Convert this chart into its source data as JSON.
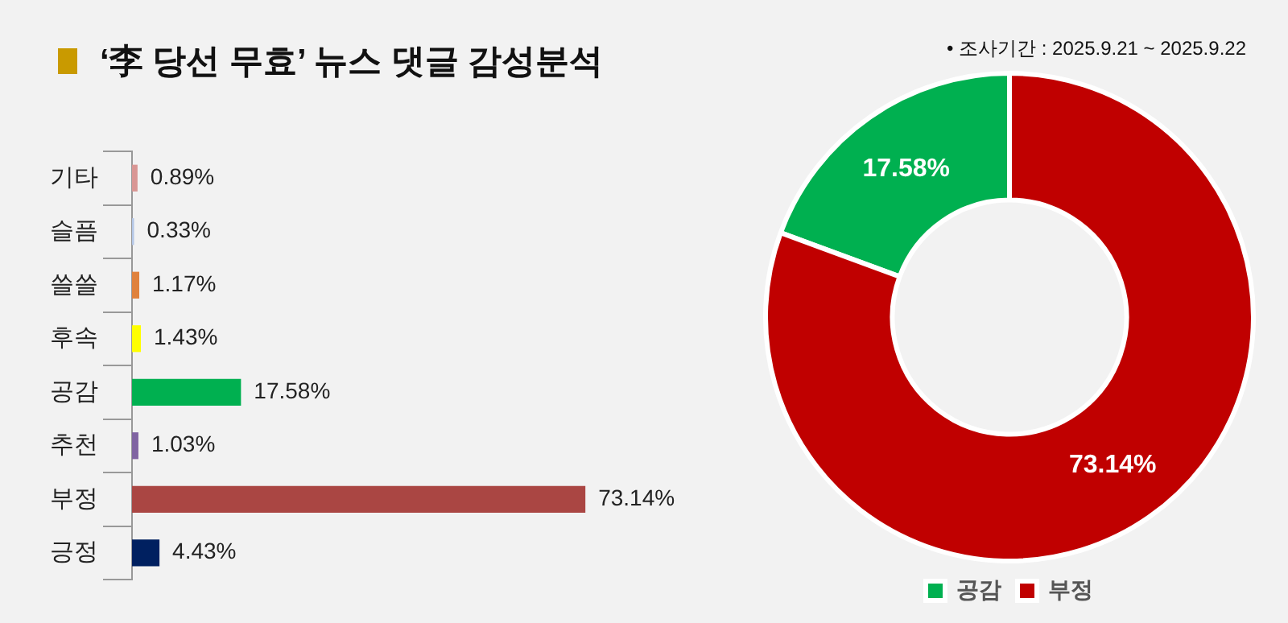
{
  "chart_data": [
    {
      "type": "bar",
      "orientation": "horizontal",
      "title": "‘李 당선 무효’ 뉴스 댓글 감성분석",
      "categories": [
        "기타",
        "슬픔",
        "쓸쓸",
        "후속",
        "공감",
        "추천",
        "부정",
        "긍정"
      ],
      "values": [
        0.89,
        0.33,
        1.17,
        1.43,
        17.58,
        1.03,
        73.14,
        4.43
      ],
      "colors": [
        "#d99694",
        "#b4c7e7",
        "#e0823d",
        "#ffff00",
        "#00b050",
        "#8064a2",
        "#aa4643",
        "#002060"
      ],
      "value_labels": [
        "0.89%",
        "0.33%",
        "1.17%",
        "1.43%",
        "17.58%",
        "1.03%",
        "73.14%",
        "4.43%"
      ],
      "tick_labels": "y",
      "grid": false,
      "legend": false
    },
    {
      "type": "donut",
      "annotations": [
        "•   조사기간 : 2025.9.21 ~ 2025.9.22"
      ],
      "categories": [
        "공감",
        "부정"
      ],
      "values": [
        17.58,
        73.14
      ],
      "colors": [
        "#00b050",
        "#c00000"
      ],
      "value_labels": [
        "17.58%",
        "73.14%"
      ],
      "legend": "bottom"
    }
  ]
}
